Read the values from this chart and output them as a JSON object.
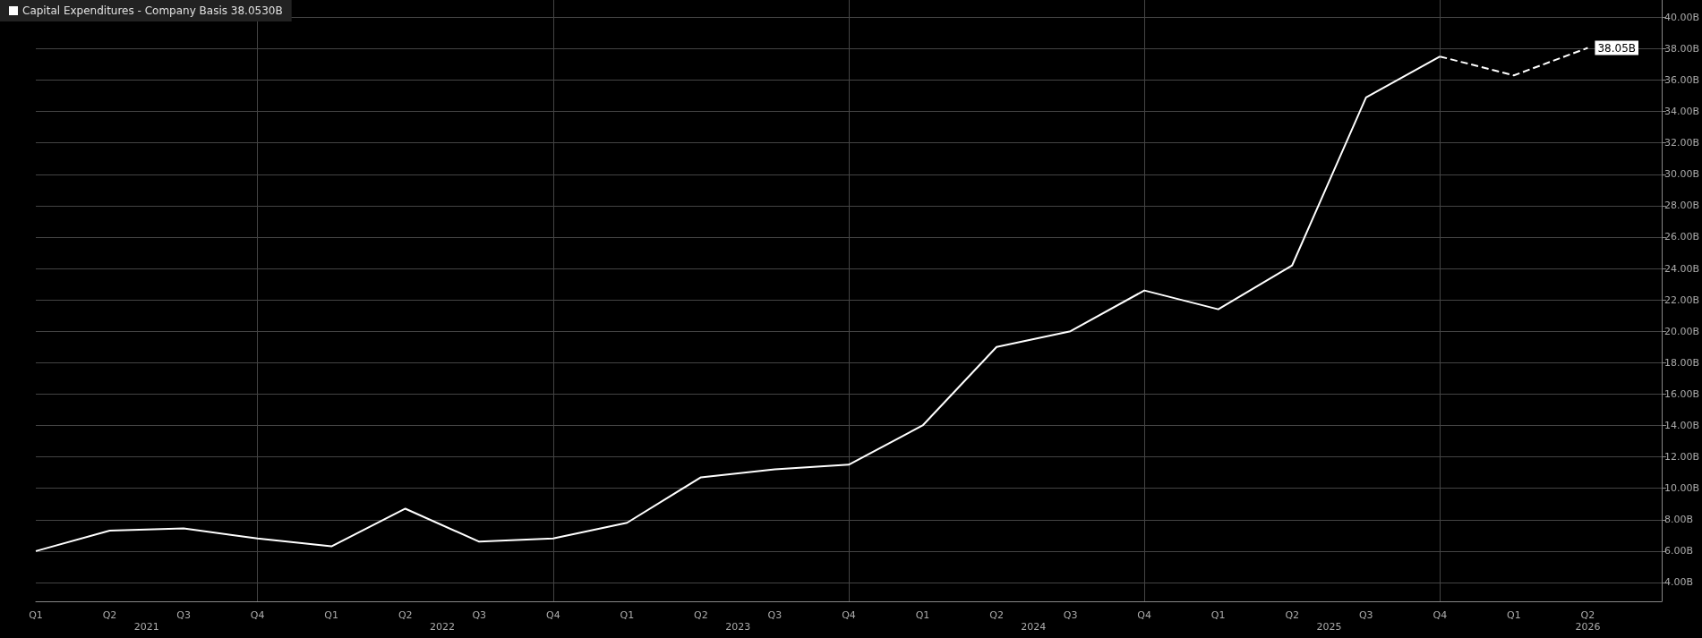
{
  "chart_data": {
    "type": "line",
    "categories": [
      "Q1",
      "Q2",
      "Q3",
      "Q4",
      "Q1",
      "Q2",
      "Q3",
      "Q4",
      "Q1",
      "Q2",
      "Q3",
      "Q4",
      "Q1",
      "Q2",
      "Q3",
      "Q4",
      "Q1",
      "Q2",
      "Q3",
      "Q4",
      "Q1",
      "Q2",
      null
    ],
    "annotations": [
      "2021",
      "2022",
      "2023",
      "2024",
      "2025",
      "2026"
    ],
    "series": [
      {
        "name": "Capital Expenditures - Company Basis 38.0530B",
        "color": "#ffffff",
        "line_style": "solid",
        "values": [
          6.0,
          7.3,
          7.45,
          6.8,
          6.3,
          8.7,
          6.6,
          6.8,
          7.8,
          10.7,
          11.2,
          11.5,
          14.0,
          19.0,
          20.0,
          22.6,
          21.4,
          24.2,
          34.9,
          37.5,
          null,
          null,
          null
        ]
      },
      {
        "color": "#ffffff",
        "line_style": "dashed",
        "values": [
          null,
          null,
          null,
          null,
          null,
          null,
          null,
          null,
          null,
          null,
          null,
          null,
          null,
          null,
          null,
          null,
          null,
          null,
          null,
          37.5,
          36.3,
          38.05,
          null
        ],
        "value_labels": [
          null,
          null,
          null,
          null,
          null,
          null,
          null,
          null,
          null,
          null,
          null,
          null,
          null,
          null,
          null,
          null,
          null,
          null,
          null,
          null,
          null,
          "38.05B",
          null
        ]
      }
    ],
    "ylim": [
      2.8,
      41.1
    ],
    "yticks": [
      {
        "value": 4,
        "label": "4.00B"
      },
      {
        "value": 6,
        "label": "6.00B"
      },
      {
        "value": 8,
        "label": "8.00B"
      },
      {
        "value": 10,
        "label": "10.00B"
      },
      {
        "value": 12,
        "label": "12.00B"
      },
      {
        "value": 14,
        "label": "14.00B"
      },
      {
        "value": 16,
        "label": "16.00B"
      },
      {
        "value": 18,
        "label": "18.00B"
      },
      {
        "value": 20,
        "label": "20.00B"
      },
      {
        "value": 22,
        "label": "22.00B"
      },
      {
        "value": 24,
        "label": "24.00B"
      },
      {
        "value": 26,
        "label": "26.00B"
      },
      {
        "value": 28,
        "label": "28.00B"
      },
      {
        "value": 30,
        "label": "30.00B"
      },
      {
        "value": 32,
        "label": "32.00B"
      },
      {
        "value": 34,
        "label": "34.00B"
      },
      {
        "value": 36,
        "label": "36.00B"
      },
      {
        "value": 38,
        "label": "38.00B"
      },
      {
        "value": 40,
        "label": "40.00B"
      }
    ],
    "grid": true,
    "legend": "top left",
    "marker": "none"
  }
}
